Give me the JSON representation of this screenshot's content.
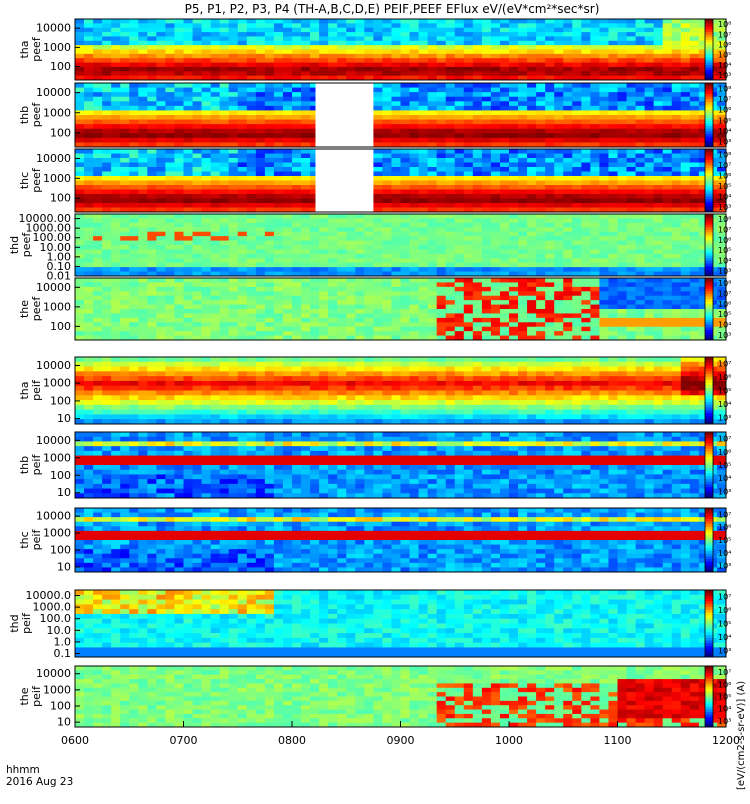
{
  "chart_data": {
    "type": "heatmap",
    "title": "P5, P1, P2, P3, P4 (TH-A,B,C,D,E) PEIF,PEEF EFlux eV/(eV*cm²*sec*sr)",
    "x_axis": {
      "ticks": [
        "0600",
        "0700",
        "0800",
        "0900",
        "1000",
        "1100",
        "1200"
      ],
      "range": [
        "06:00",
        "12:00"
      ],
      "label_lines": [
        "hhmm",
        "2016 Aug 23"
      ]
    },
    "colorbar_label": "[eV/(cm2-s-sr-eV)] (A)",
    "colorbar_ticks_electron": [
      "10³",
      "10⁴",
      "10⁵",
      "10⁶",
      "10⁷",
      "10⁸"
    ],
    "colorbar_ticks_ion": [
      "10³",
      "10⁴",
      "10⁵",
      "10⁶",
      "10⁷"
    ],
    "panels": [
      {
        "id": "tha-peef",
        "label": [
          "tha",
          "peef"
        ],
        "yticks": [
          "10000",
          "1000",
          "100"
        ],
        "yrange": [
          20,
          30000
        ],
        "scale": "log"
      },
      {
        "id": "thb-peef",
        "label": [
          "thb",
          "peef"
        ],
        "yticks": [
          "10000",
          "1000",
          "100"
        ],
        "yrange": [
          20,
          30000
        ],
        "scale": "log",
        "gap": [
          "08:13",
          "08:45"
        ]
      },
      {
        "id": "thc-peef",
        "label": [
          "thc",
          "peef"
        ],
        "yticks": [
          "10000",
          "1000",
          "100"
        ],
        "yrange": [
          20,
          30000
        ],
        "scale": "log",
        "gap": [
          "08:13",
          "08:45"
        ]
      },
      {
        "id": "thd-peef",
        "label": [
          "thd",
          "peef"
        ],
        "yticks": [
          "10000.00",
          "1000.00",
          "100.00",
          "10.00",
          "1.00",
          "0.10",
          "0.01"
        ],
        "yrange": [
          0.01,
          30000
        ],
        "scale": "log"
      },
      {
        "id": "the-peef",
        "label": [
          "the",
          "peef"
        ],
        "yticks": [
          "10000",
          "1000",
          "100"
        ],
        "yrange": [
          20,
          30000
        ],
        "scale": "log"
      },
      {
        "id": "tha-peif",
        "label": [
          "tha",
          "peif"
        ],
        "yticks": [
          "10000",
          "1000",
          "100",
          "10"
        ],
        "yrange": [
          5,
          30000
        ],
        "scale": "log"
      },
      {
        "id": "thb-peif",
        "label": [
          "thb",
          "peif"
        ],
        "yticks": [
          "10000",
          "1000",
          "100",
          "10"
        ],
        "yrange": [
          5,
          30000
        ],
        "scale": "log"
      },
      {
        "id": "thc-peif",
        "label": [
          "thc",
          "peif"
        ],
        "yticks": [
          "10000",
          "1000",
          "100",
          "10"
        ],
        "yrange": [
          5,
          30000
        ],
        "scale": "log"
      },
      {
        "id": "thd-peif",
        "label": [
          "thd",
          "peif"
        ],
        "yticks": [
          "10000.0",
          "1000.0",
          "100.0",
          "10.0",
          "1.0",
          "0.1"
        ],
        "yrange": [
          0.05,
          30000
        ],
        "scale": "log"
      },
      {
        "id": "the-peif",
        "label": [
          "the",
          "peif"
        ],
        "yticks": [
          "10000",
          "1000",
          "100",
          "10"
        ],
        "yrange": [
          5,
          30000
        ],
        "scale": "log"
      }
    ]
  }
}
